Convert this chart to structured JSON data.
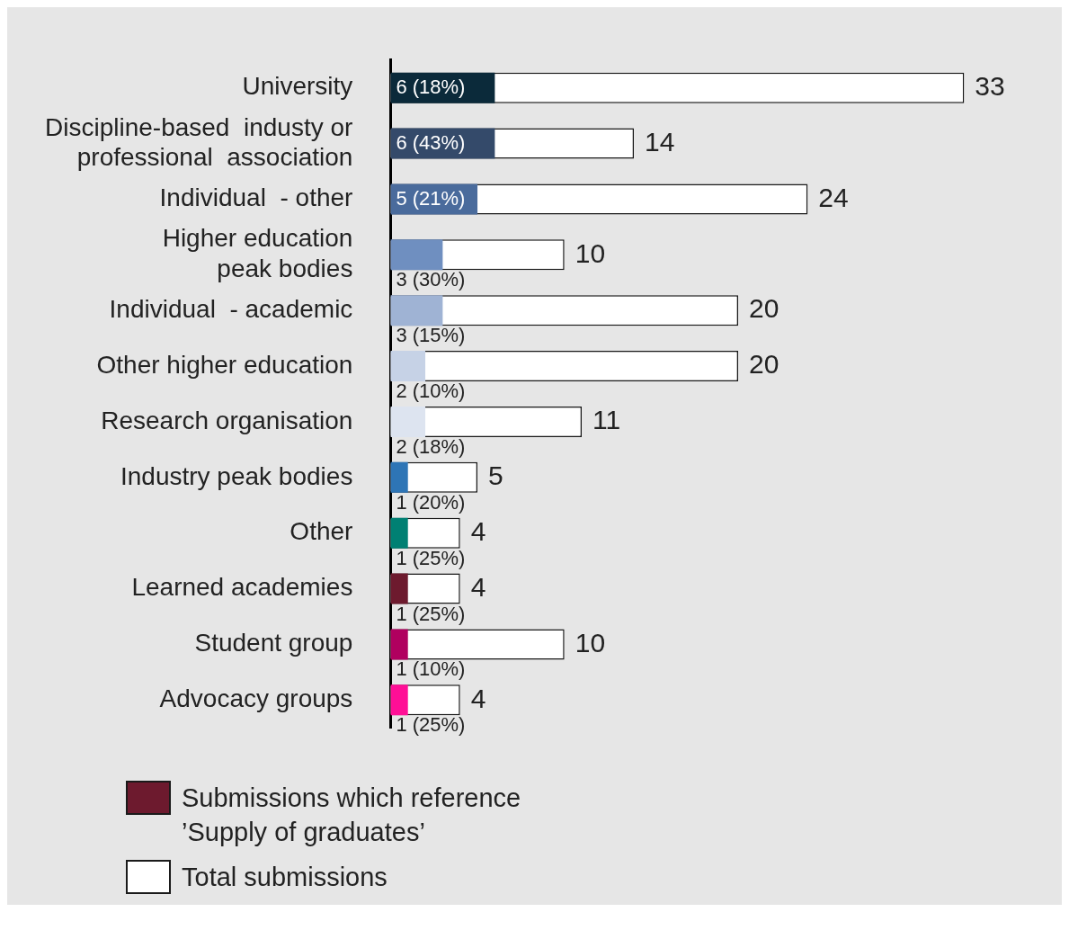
{
  "chart_data": {
    "type": "bar",
    "orientation": "horizontal",
    "legend": "bottom left",
    "categories": [
      "University",
      "Discipline-based  industy or\nprofessional  association",
      "Individual  - other",
      "Higher education\npeak bodies",
      "Individual  - academic",
      "Other higher education",
      "Research organisation",
      "Industry peak bodies",
      "Other",
      "Learned academies",
      "Student group",
      "Advocacy groups"
    ],
    "series": [
      {
        "name": "Submissions which reference ’Supply of graduates’",
        "color": "#6d1a2e",
        "colors": [
          "#0b2a3a",
          "#344a6a",
          "#4a6b9c",
          "#6f8fc0",
          "#9fb3d4",
          "#c6d2e6",
          "#dde4f0",
          "#2e75b6",
          "#008073",
          "#6d1a2e",
          "#b0005f",
          "#ff0f96"
        ],
        "values": [
          6,
          6,
          5,
          3,
          3,
          2,
          2,
          1,
          1,
          1,
          1,
          1
        ],
        "value_labels": [
          "6 (18%)",
          "6 (43%)",
          "5 (21%)",
          "3 (30%)",
          "3 (15%)",
          "2 (10%)",
          "2 (18%)",
          "1 (20%)",
          "1 (25%)",
          "1 (25%)",
          "1 (10%)",
          "1 (25%)"
        ]
      },
      {
        "name": "Total submissions",
        "color": "#ffffff",
        "values": [
          33,
          14,
          24,
          10,
          20,
          20,
          11,
          5,
          4,
          4,
          10,
          4
        ],
        "value_labels": [
          "33",
          "14",
          "24",
          "10",
          "20",
          "20",
          "11",
          "5",
          "4",
          "4",
          "10",
          "4"
        ]
      }
    ]
  }
}
